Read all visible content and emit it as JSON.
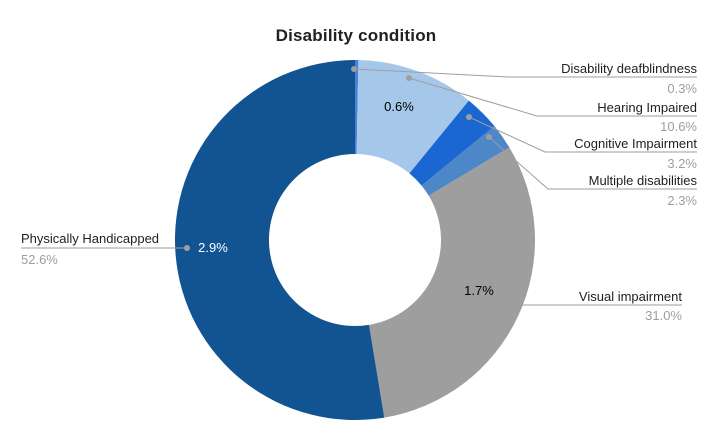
{
  "title": "Disability condition",
  "chart_data": {
    "type": "pie",
    "subtype": "donut",
    "title": "Disability condition",
    "unit": "%",
    "legend_position": "none",
    "label_color": "#212121",
    "value_color": "#9e9e9e",
    "leader_line_color": "#9e9e9e",
    "start_angle_deg": 0,
    "direction": "clockwise",
    "categories": [
      "Disability deafblindness",
      "Hearing Impaired",
      "Cognitive Impairment",
      "Multiple disabilities",
      "Visual impairment",
      "Physically Handicapped"
    ],
    "values": [
      0.3,
      10.6,
      3.2,
      2.3,
      31.0,
      52.6
    ],
    "slices": [
      {
        "label": "Disability deafblindness",
        "value": 0.3,
        "value_label": "0.3%",
        "color": "#4a80d8"
      },
      {
        "label": "Hearing Impaired",
        "value": 10.6,
        "value_label": "10.6%",
        "color": "#a5c8ea",
        "inner_label": "0.6%",
        "inner_label_color": "#000000"
      },
      {
        "label": "Cognitive Impairment",
        "value": 3.2,
        "value_label": "3.2%",
        "color": "#1a67d2"
      },
      {
        "label": "Multiple disabilities",
        "value": 2.3,
        "value_label": "2.3%",
        "color": "#4e87c7"
      },
      {
        "label": "Visual impairment",
        "value": 31.0,
        "value_label": "31.0%",
        "color": "#9e9e9e",
        "inner_label": "1.7%",
        "inner_label_color": "#000000"
      },
      {
        "label": "Physically Handicapped",
        "value": 52.6,
        "value_label": "52.6%",
        "color": "#125492",
        "inner_label": "2.9%",
        "inner_label_color": "#ffffff"
      }
    ]
  }
}
